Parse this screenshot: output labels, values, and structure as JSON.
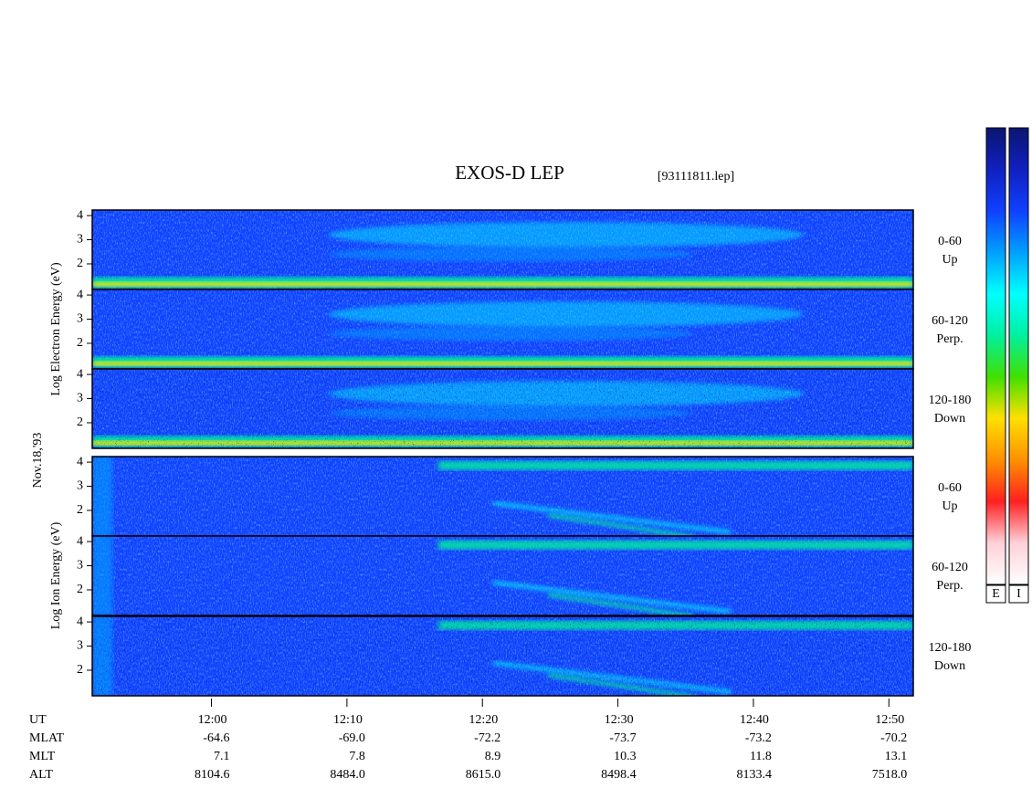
{
  "chart_data": {
    "type": "spectrogram",
    "title": "EXOS-D LEP",
    "subtitle": "[93111811.lep]",
    "date_label": "Nov.18,'93",
    "groups": [
      {
        "label": "Log Electron Energy (eV)",
        "panels": [
          {
            "angle": "0-60",
            "direction": "Up"
          },
          {
            "angle": "60-120",
            "direction": "Perp."
          },
          {
            "angle": "120-180",
            "direction": "Down"
          }
        ]
      },
      {
        "label": "Log Ion Energy (eV)",
        "panels": [
          {
            "angle": "0-60",
            "direction": "Up"
          },
          {
            "angle": "60-120",
            "direction": "Perp."
          },
          {
            "angle": "120-180",
            "direction": "Down"
          }
        ]
      }
    ],
    "ylim": [
      0.94,
      4.23
    ],
    "yticks": [
      2,
      3,
      4
    ],
    "xlim": [
      711.2,
      771.8
    ],
    "xticks": [
      {
        "value": 720,
        "label": "12:00"
      },
      {
        "value": 730,
        "label": "12:10"
      },
      {
        "value": 740,
        "label": "12:20"
      },
      {
        "value": 750,
        "label": "12:30"
      },
      {
        "value": 760,
        "label": "12:40"
      },
      {
        "value": 770,
        "label": "12:50"
      }
    ],
    "xtick_row_name": "UT",
    "rows": [
      {
        "name": "MLAT",
        "values": [
          -64.6,
          -69.0,
          -72.2,
          -73.7,
          -73.2,
          -70.2
        ],
        "value_labels": [
          "-64.6",
          "-69.0",
          "-72.2",
          "-73.7",
          "-73.2",
          "-70.2"
        ]
      },
      {
        "name": "MLT",
        "values": [
          7.1,
          7.8,
          8.9,
          10.3,
          11.8,
          13.1
        ],
        "value_labels": [
          "7.1",
          "7.8",
          "8.9",
          "10.3",
          "11.8",
          "13.1"
        ]
      },
      {
        "name": "ALT",
        "values": [
          8104.6,
          8484.0,
          8615.0,
          8498.4,
          8133.4,
          7518.0
        ],
        "value_labels": [
          "8104.6",
          "8484.0",
          "8615.0",
          "8498.4",
          "8133.4",
          "7518.0"
        ]
      }
    ],
    "colorbars": [
      "E",
      "I"
    ],
    "colormap": [
      "#ffffff",
      "#ffd0d8",
      "#ff2020",
      "#ff9000",
      "#ffe000",
      "#40e000",
      "#00f0a0",
      "#00ffff",
      "#00a0ff",
      "#1040ff",
      "#1020c0",
      "#0a1670"
    ]
  }
}
